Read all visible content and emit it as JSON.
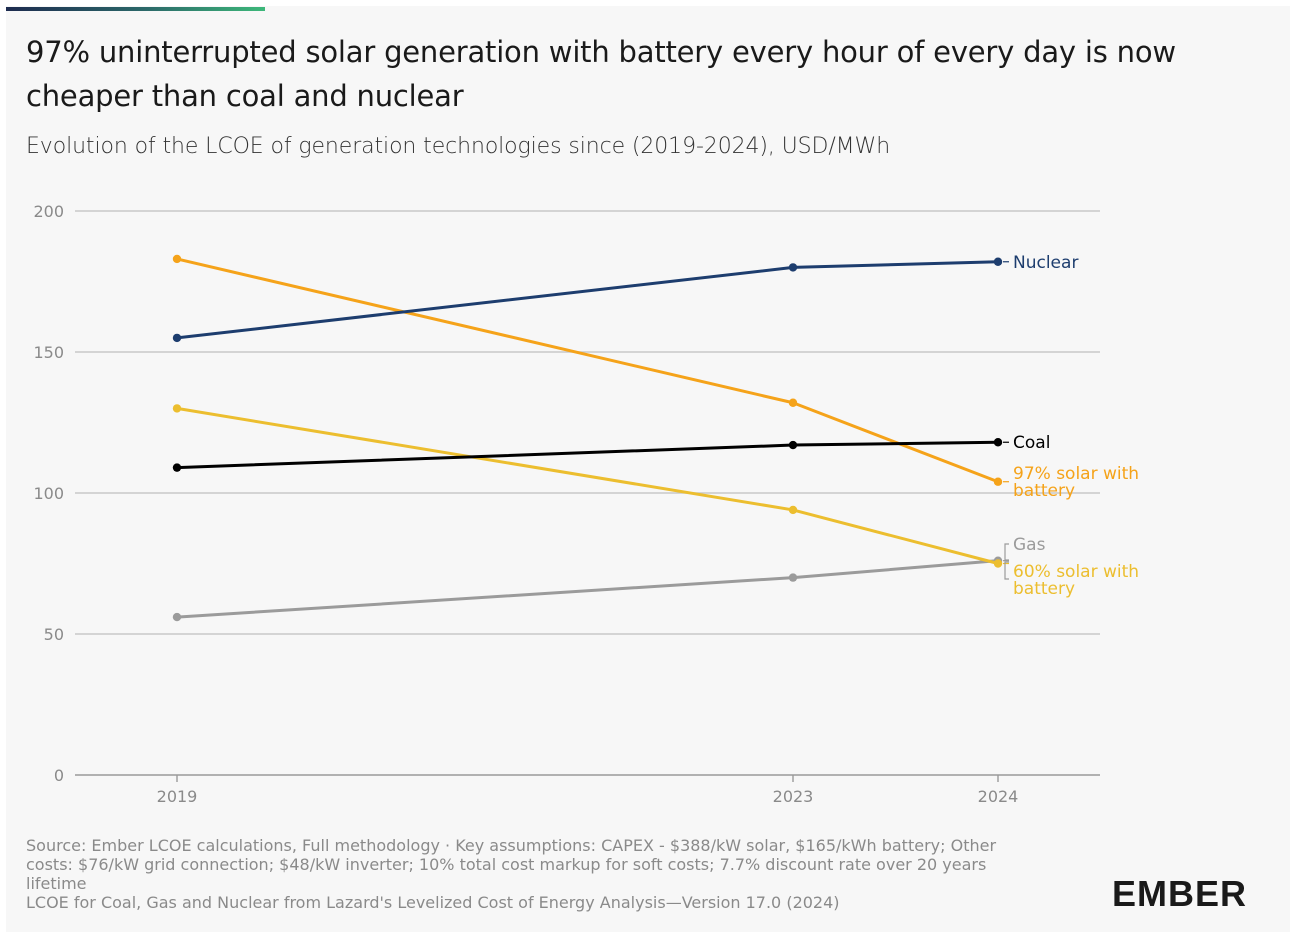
{
  "header": {
    "title": "97% uninterrupted solar generation with battery every hour of every day is now cheaper than coal and nuclear",
    "subtitle": "Evolution of the LCOE of generation technologies since (2019-2024), USD/MWh"
  },
  "footer": {
    "source_line": "Source: Ember LCOE calculations, Full methodology · Key assumptions: CAPEX - $388/kW solar, $165/kWh battery; Other costs: $76/kW grid connection; $48/kW inverter; 10% total cost markup for soft costs; 7.7% discount rate over 20 years lifetime",
    "lazard_line": "LCOE for Coal, Gas and Nuclear from Lazard's Levelized Cost of Energy Analysis—Version 17.0 (2024)"
  },
  "logo": {
    "text": "EMBER"
  },
  "chart_data": {
    "type": "line",
    "title": "97% uninterrupted solar generation with battery every hour of every day is now cheaper than coal and nuclear",
    "subtitle": "Evolution of the LCOE of generation technologies since (2019-2024), USD/MWh",
    "x": [
      2019,
      2023,
      2024
    ],
    "x_tick_labels": [
      "2019",
      "2023",
      "2024"
    ],
    "ylim": [
      0,
      200
    ],
    "y_ticks": [
      0,
      50,
      100,
      150,
      200
    ],
    "y_tick_labels": [
      "0",
      "50",
      "100",
      "150",
      "200"
    ],
    "grid": true,
    "legend": "direct labels at line ends",
    "series": [
      {
        "name": "Nuclear",
        "label_lines": [
          "Nuclear"
        ],
        "color": "#1d3d6e",
        "values": [
          155,
          180,
          182
        ]
      },
      {
        "name": "Coal",
        "label_lines": [
          "Coal"
        ],
        "color": "#000000",
        "values": [
          109,
          117,
          118
        ]
      },
      {
        "name": "97% solar with battery",
        "label_lines": [
          "97% solar with",
          "battery"
        ],
        "color": "#f5a31a",
        "values": [
          183,
          132,
          104
        ]
      },
      {
        "name": "Gas",
        "label_lines": [
          "Gas"
        ],
        "color": "#9b9b9b",
        "values": [
          56,
          70,
          76
        ]
      },
      {
        "name": "60% solar with battery",
        "label_lines": [
          "60% solar with",
          "battery"
        ],
        "color": "#ecbe2f",
        "values": [
          130,
          94,
          75
        ]
      }
    ]
  }
}
